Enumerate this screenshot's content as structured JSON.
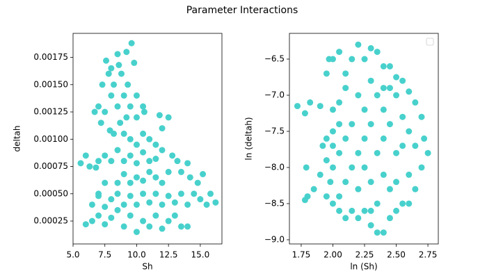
{
  "title": "Parameter Interactions",
  "chart_data": [
    {
      "type": "scatter",
      "xlabel": "Sh",
      "ylabel": "deltah",
      "color": "#48d1cc",
      "xlim": [
        5.0,
        16.7
      ],
      "ylim": [
        4e-05,
        0.00197
      ],
      "xticks": [
        {
          "value": 5,
          "label": "5.0"
        },
        7.5,
        {
          "value": 10,
          "label": "10.0"
        },
        12.5,
        {
          "value": 15,
          "label": "15.0"
        }
      ],
      "yticks": [
        0.00025,
        {
          "value": 0.0005,
          "label": "0.00050"
        },
        0.00075,
        {
          "value": 0.001,
          "label": "0.00100"
        },
        0.00125,
        {
          "value": 0.0015,
          "label": "0.00150"
        },
        0.00175
      ],
      "x": [
        6,
        6.5,
        7,
        7.5,
        8,
        8.5,
        9,
        9.5,
        10,
        10.5,
        11,
        11.5,
        12,
        12.5,
        13,
        13.5,
        14,
        6.5,
        7,
        7.5,
        8,
        8.5,
        9,
        9.5,
        10,
        10.5,
        11,
        11.5,
        12,
        12.5,
        13,
        13.5,
        14,
        14.5,
        15,
        15.5,
        16.2,
        15.8,
        14.8,
        14.2,
        15.2,
        13.5,
        12.8,
        13.2,
        14,
        8.5,
        9,
        9.5,
        10,
        10.5,
        11,
        11.5,
        12,
        12.5,
        9,
        9.5,
        10,
        10.5,
        11,
        11.5,
        12,
        8,
        8.5,
        9.5,
        10,
        10.5,
        11,
        11.5,
        9,
        12,
        11.8,
        12.5,
        10,
        9.2,
        10.6,
        8.2,
        8.7,
        5.6,
        6,
        6.3,
        7,
        7.5,
        6.8,
        7.5,
        7,
        7,
        7.5,
        8,
        8.5,
        9,
        9.5,
        7.3,
        7.8,
        8.2,
        8.8,
        9.3,
        8,
        8.5,
        9.2,
        9.6,
        8.6,
        7.6,
        9.8,
        10,
        10.5,
        7.2,
        6.7,
        7.9
      ],
      "y": [
        0.00022,
        0.00025,
        0.0003,
        0.00022,
        0.00028,
        0.00035,
        0.0002,
        0.0003,
        0.00015,
        0.00025,
        0.0002,
        0.0003,
        0.00018,
        0.00025,
        0.0003,
        0.0002,
        0.0002,
        0.0004,
        0.00048,
        0.00038,
        0.00045,
        0.0005,
        0.0004,
        0.00048,
        0.0004,
        0.0005,
        0.00042,
        0.0005,
        0.0004,
        0.00048,
        0.00042,
        0.0005,
        0.0004,
        0.0005,
        0.00045,
        0.0004,
        0.00042,
        0.0005,
        0.0006,
        0.00065,
        0.00068,
        0.0007,
        0.00085,
        0.0008,
        0.00078,
        0.0006,
        0.00068,
        0.0006,
        0.00065,
        0.00062,
        0.0007,
        0.00065,
        0.0006,
        0.0007,
        0.0008,
        0.00085,
        0.00078,
        0.00088,
        0.0008,
        0.00082,
        0.0009,
        0.0008,
        0.0009,
        0.001,
        0.00095,
        0.00105,
        0.001,
        0.00095,
        0.00105,
        0.0011,
        0.00122,
        0.0012,
        0.0012,
        0.0012,
        0.00125,
        0.00105,
        0.00115,
        0.00078,
        0.00085,
        0.00075,
        0.0008,
        0.00085,
        0.00074,
        0.0006,
        0.0005,
        0.0013,
        0.00125,
        0.0014,
        0.0013,
        0.0014,
        0.0013,
        0.0015,
        0.0016,
        0.0015,
        0.0016,
        0.0015,
        0.00165,
        0.00178,
        0.0018,
        0.00188,
        0.00168,
        0.00172,
        0.0017,
        0.0014,
        0.0013,
        0.00115,
        0.00125,
        0.00108
      ]
    },
    {
      "type": "scatter",
      "xlabel": "ln (Sh)",
      "ylabel": "ln (deltah)",
      "color": "#48d1cc",
      "legend": "upper right",
      "xlim": [
        1.657,
        2.832
      ],
      "ylim": [
        -9.058,
        -6.144
      ],
      "xticks": [
        1.75,
        {
          "value": 2,
          "label": "2.00"
        },
        2.25,
        {
          "value": 2.5,
          "label": "2.50"
        },
        2.75
      ],
      "yticks": [
        {
          "value": -9,
          "label": "−9.0"
        },
        {
          "value": -8.5,
          "label": "−8.5"
        },
        {
          "value": -8,
          "label": "−8.0"
        },
        {
          "value": -7.5,
          "label": "−7.5"
        },
        {
          "value": -7,
          "label": "−7.0"
        },
        {
          "value": -6.5,
          "label": "−6.5"
        }
      ],
      "x": [
        1.72,
        1.78,
        1.82,
        1.79,
        1.78,
        1.8,
        1.85,
        1.9,
        1.9,
        1.92,
        1.95,
        1.95,
        1.98,
        2.0,
        2.0,
        2.05,
        2.1,
        2.15,
        2.2,
        2.25,
        2.3,
        2.35,
        2.4,
        2.45,
        2.5,
        2.55,
        2.6,
        2.65,
        2.7,
        2.75,
        2.72,
        2.7,
        2.65,
        2.6,
        2.55,
        2.5,
        2.45,
        2.4,
        2.35,
        2.3,
        2.25,
        2.2,
        2.15,
        2.1,
        2.05,
        2.0,
        1.95,
        1.97,
        2.1,
        2.05,
        2.0,
        2.05,
        2.1,
        2.05,
        2.0,
        2.1,
        2.05,
        2.15,
        2.15,
        2.2,
        2.2,
        2.2,
        2.25,
        2.25,
        2.25,
        2.3,
        2.3,
        2.3,
        2.35,
        2.35,
        2.35,
        2.4,
        2.4,
        2.4,
        2.45,
        2.45,
        2.45,
        2.5,
        2.5,
        2.5,
        2.55,
        2.55,
        2.6,
        2.6,
        2.65,
        2.4,
        2.3,
        2.0,
        1.95
      ],
      "y": [
        -7.15,
        -7.25,
        -7.1,
        -8.0,
        -8.45,
        -8.4,
        -8.3,
        -8.1,
        -7.15,
        -7.7,
        -7.9,
        -8.4,
        -8.2,
        -7.5,
        -8.5,
        -8.6,
        -8.7,
        -8.6,
        -8.7,
        -8.6,
        -8.8,
        -8.9,
        -8.9,
        -8.7,
        -8.6,
        -8.5,
        -8.5,
        -8.3,
        -8.0,
        -7.8,
        -7.6,
        -7.3,
        -7.1,
        -6.95,
        -6.8,
        -6.75,
        -6.9,
        -6.6,
        -6.4,
        -6.35,
        -6.5,
        -6.3,
        -6.5,
        -6.7,
        -6.4,
        -6.5,
        -6.7,
        -6.5,
        -6.9,
        -7.1,
        -7.2,
        -7.4,
        -7.6,
        -7.8,
        -8.0,
        -8.2,
        -8.4,
        -8.0,
        -7.4,
        -7.0,
        -7.8,
        -8.3,
        -7.2,
        -7.6,
        -8.0,
        -6.8,
        -7.4,
        -8.2,
        -7.0,
        -7.8,
        -8.5,
        -7.2,
        -7.6,
        -8.1,
        -6.6,
        -7.4,
        -8.3,
        -7.0,
        -7.8,
        -8.2,
        -7.3,
        -7.7,
        -7.5,
        -8.1,
        -7.7,
        -6.9,
        -8.6,
        -7.7,
        -7.6
      ]
    }
  ]
}
